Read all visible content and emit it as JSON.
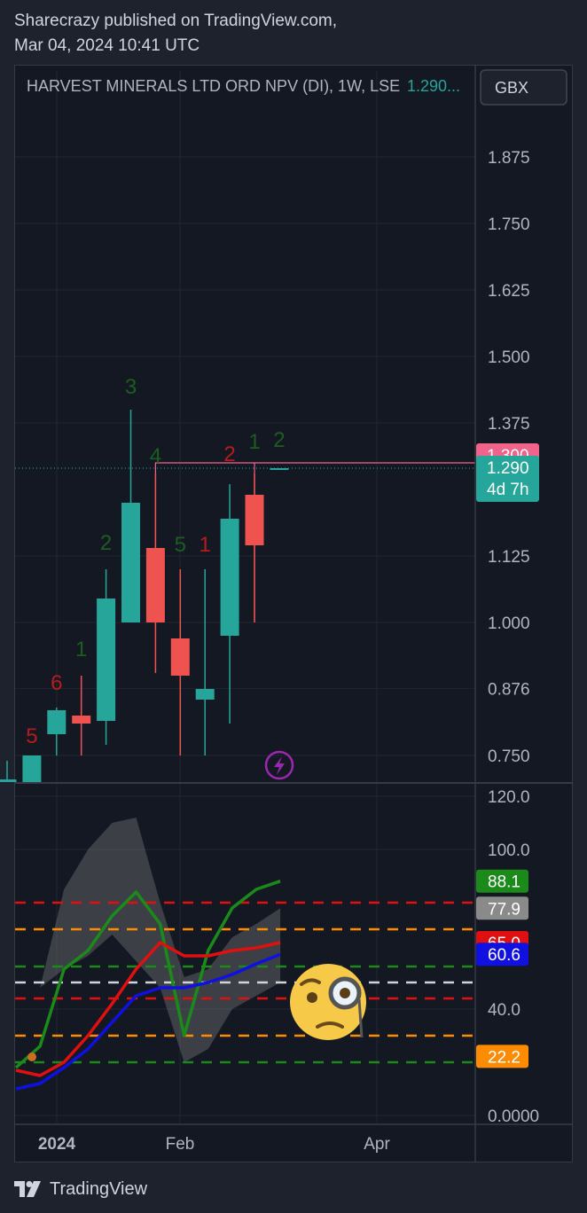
{
  "header": {
    "publisher_line": "Sharecrazy published on TradingView.com,",
    "date_line": "Mar 04, 2024 10:41 UTC"
  },
  "symbol": {
    "title": "HARVEST MINERALS LTD ORD NPV (DI), 1W, LSE",
    "last_value": "1.290...",
    "currency": "GBX"
  },
  "footer": {
    "brand": "TradingView"
  },
  "colors": {
    "up": "#26a69a",
    "down": "#ef5350",
    "count_up": "#1b5e20",
    "count_down": "#b71c1c",
    "price_badge": "#f0638a",
    "rsi_green": "#1b8a1b",
    "rsi_red": "#e01010",
    "rsi_blue": "#1010e0",
    "rsi_gray": "#8a8a8a",
    "rsi_orange": "#ff8c00"
  },
  "chart_data": [
    {
      "type": "candlestick",
      "title": "HARVEST MINERALS LTD ORD NPV (DI), 1W, LSE",
      "y_ticks": [
        "1.875",
        "1.750",
        "1.625",
        "1.500",
        "1.375",
        "1.125",
        "1.000",
        "0.876",
        "0.750"
      ],
      "ylim": [
        0.7,
        1.97
      ],
      "x_ticks": [
        "2024",
        "Feb",
        "Apr"
      ],
      "price_labels": [
        {
          "value": "1.300",
          "text": "1.300",
          "color": "#f0638a"
        },
        {
          "value": "1.290",
          "text": "1.290",
          "sub": "4d 7h",
          "color": "#26a69a"
        }
      ],
      "candles": [
        {
          "open": 0.7,
          "high": 0.74,
          "low": 0.7,
          "close": 0.705
        },
        {
          "open": 0.7,
          "high": 0.75,
          "low": 0.7,
          "close": 0.75
        },
        {
          "open": 0.79,
          "high": 0.84,
          "low": 0.75,
          "close": 0.835
        },
        {
          "open": 0.825,
          "high": 0.9,
          "low": 0.75,
          "close": 0.81
        },
        {
          "open": 0.815,
          "high": 1.1,
          "low": 0.77,
          "close": 1.045
        },
        {
          "open": 1.0,
          "high": 1.4,
          "low": 1.0,
          "close": 1.225
        },
        {
          "open": 1.14,
          "high": 1.28,
          "low": 0.905,
          "close": 1.0
        },
        {
          "open": 0.97,
          "high": 1.1,
          "low": 0.75,
          "close": 0.9
        },
        {
          "open": 0.855,
          "high": 1.1,
          "low": 0.75,
          "close": 0.875
        },
        {
          "open": 0.975,
          "high": 1.26,
          "low": 0.81,
          "close": 1.195
        },
        {
          "open": 1.24,
          "high": 1.28,
          "low": 1.0,
          "close": 1.145
        },
        {
          "open": 1.29,
          "high": 1.29,
          "low": 1.29,
          "close": 1.29
        }
      ],
      "sequential_counts": [
        {
          "candle": 1,
          "text": "5",
          "side": "down"
        },
        {
          "candle": 2,
          "text": "6",
          "side": "down"
        },
        {
          "candle": 3,
          "text": "1",
          "side": "up"
        },
        {
          "candle": 4,
          "text": "2",
          "side": "up"
        },
        {
          "candle": 5,
          "text": "3",
          "side": "up"
        },
        {
          "candle": 6,
          "text": "4",
          "side": "up"
        },
        {
          "candle": 7,
          "text": "5",
          "side": "up"
        },
        {
          "candle": 8,
          "text": "1",
          "side": "down"
        },
        {
          "candle": 9,
          "text": "2",
          "side": "down"
        },
        {
          "candle": 10,
          "text": "1",
          "side": "up"
        },
        {
          "candle": 11,
          "text": "2",
          "side": "up"
        }
      ],
      "resistance_level": 1.3
    },
    {
      "type": "line",
      "y_ticks": [
        "120.0",
        "100.0",
        "40.0",
        "0.0000"
      ],
      "ylim": [
        0,
        120
      ],
      "x": [
        0,
        1,
        2,
        3,
        4,
        5,
        6,
        7,
        8,
        9,
        10,
        11
      ],
      "series": [
        {
          "color": "#1b8a1b",
          "values": [
            18,
            26,
            55,
            62,
            75,
            84,
            72,
            30,
            62,
            78,
            85,
            88.1
          ]
        },
        {
          "color": "#e01010",
          "values": [
            17,
            15,
            20,
            30,
            42,
            55,
            65,
            60,
            60,
            62,
            63,
            65.0
          ]
        },
        {
          "color": "#1010e0",
          "values": [
            10,
            12,
            18,
            25,
            35,
            45,
            48,
            48,
            50,
            53,
            57,
            60.6
          ]
        }
      ],
      "band": {
        "color": "#8a8a8a",
        "upper": [
          35,
          48,
          85,
          100,
          110,
          112,
          80,
          52,
          55,
          67,
          72,
          77.9
        ],
        "lower": [
          35,
          48,
          55,
          60,
          68,
          58,
          48,
          20,
          25,
          40,
          45,
          50
        ]
      },
      "levels": [
        {
          "value": 88.1,
          "text": "88.1",
          "color": "#1b8a1b"
        },
        {
          "value": 77.9,
          "text": "77.9",
          "color": "#8a8a8a"
        },
        {
          "value": 65.0,
          "text": "65.0",
          "color": "#e01010"
        },
        {
          "value": 60.6,
          "text": "60.6",
          "color": "#1010e0"
        },
        {
          "value": 22.2,
          "text": "22.2",
          "color": "#ff8c00"
        }
      ],
      "h_lines": [
        {
          "value": 80,
          "color": "#e01010"
        },
        {
          "value": 70,
          "color": "#ff8c00"
        },
        {
          "value": 56,
          "color": "#1b8a1b"
        },
        {
          "value": 50,
          "color": "#d1d4dc"
        },
        {
          "value": 44,
          "color": "#e01010"
        },
        {
          "value": 30,
          "color": "#ff8c00"
        },
        {
          "value": 20,
          "color": "#1b8a1b"
        }
      ]
    }
  ]
}
